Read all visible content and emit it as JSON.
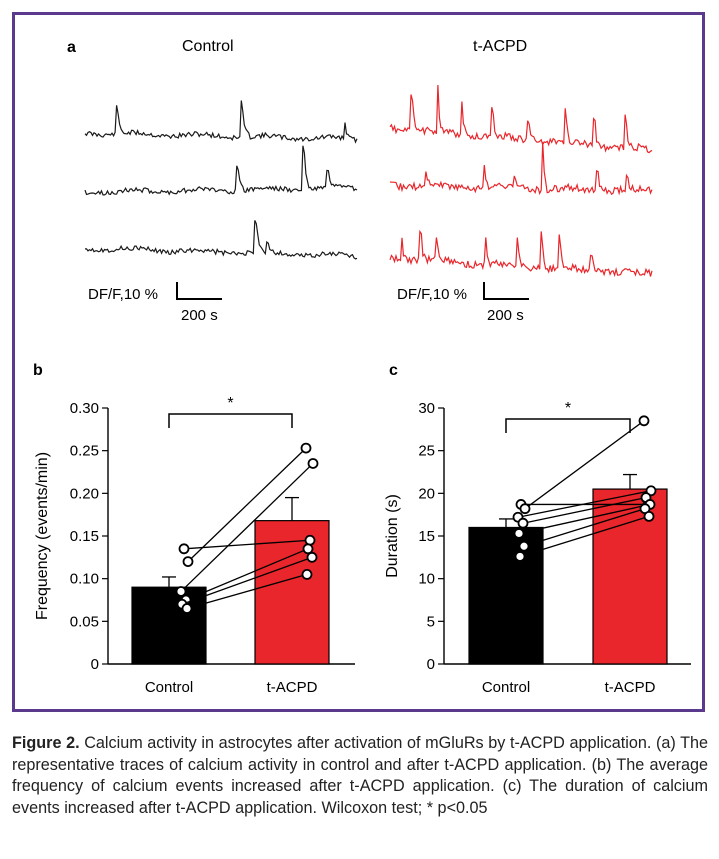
{
  "figure": {
    "panel_a": {
      "label": "a",
      "control_title": "Control",
      "tacpd_title": "t-ACPD",
      "scale_label_y": "DF/F,10 %",
      "scale_label_x": "200 s",
      "colors": {
        "control": "#1a1a1a",
        "tacpd": "#e8262b"
      }
    },
    "panel_b": {
      "label": "b"
    },
    "panel_c": {
      "label": "c"
    },
    "frame_color": "#5b3a8e"
  },
  "chart_data": [
    {
      "panel": "b",
      "type": "bar",
      "categories": [
        "Control",
        "t-ACPD"
      ],
      "values": [
        0.09,
        0.168
      ],
      "errors": [
        0.012,
        0.027
      ],
      "colors": [
        "#000000",
        "#e8262b"
      ],
      "ylabel": "Frequency (events/min)",
      "ylim": [
        0,
        0.3
      ],
      "yticks": [
        "0",
        "0.05",
        "0.10",
        "0.15",
        "0.20",
        "0.25",
        "0.30"
      ],
      "significance": "*",
      "paired_points": [
        [
          0.135,
          0.145
        ],
        [
          0.12,
          0.253
        ],
        [
          0.085,
          0.235
        ],
        [
          0.075,
          0.135
        ],
        [
          0.07,
          0.125
        ],
        [
          0.065,
          0.105
        ]
      ]
    },
    {
      "panel": "c",
      "type": "bar",
      "categories": [
        "Control",
        "t-ACPD"
      ],
      "values": [
        16,
        20.5
      ],
      "errors": [
        1.0,
        1.7
      ],
      "colors": [
        "#000000",
        "#e8262b"
      ],
      "ylabel": "Duration (s)",
      "ylim": [
        0,
        30
      ],
      "yticks": [
        "0",
        "5",
        "10",
        "15",
        "20",
        "25",
        "30"
      ],
      "significance": "*",
      "paired_points": [
        [
          18.7,
          18.7
        ],
        [
          18.2,
          28.5
        ],
        [
          17.2,
          20.3
        ],
        [
          16.5,
          19.5
        ],
        [
          15.3,
          18.7
        ],
        [
          13.8,
          18.2
        ],
        [
          12.6,
          17.3
        ]
      ]
    }
  ],
  "caption": {
    "label": "Figure 2.",
    "text": "Calcium activity in astrocytes after activation of mGluRs by t-ACPD application. (a) The representative traces of calcium activity in control and after t-ACPD application. (b) The average frequency of calcium events increased after t-ACPD application. (c) The duration of calcium events increased after t-ACPD application. Wilcoxon test; * p<0.05"
  }
}
